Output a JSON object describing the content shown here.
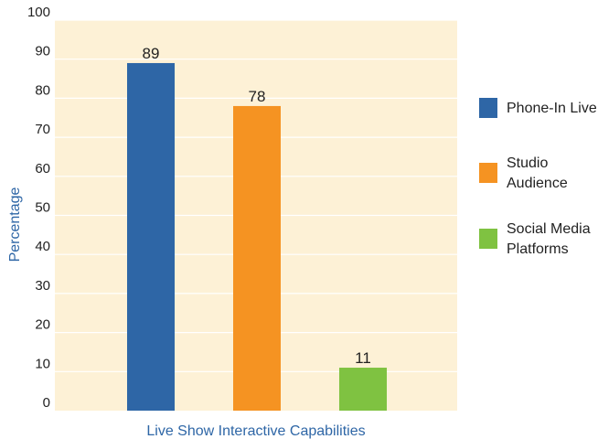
{
  "chart_data": {
    "type": "bar",
    "title": "",
    "xlabel": "Live Show Interactive Capabilities",
    "ylabel": "Percentage",
    "categories": [
      "Phone-In Live",
      "Studio Audience",
      "Social Media Platforms"
    ],
    "values": [
      89,
      78,
      11
    ],
    "data_labels": [
      "89",
      "78",
      "11"
    ],
    "ylim": [
      0,
      100
    ],
    "yticks": [
      "0",
      "10",
      "20",
      "30",
      "40",
      "50",
      "60",
      "70",
      "80",
      "90",
      "100"
    ],
    "grid": true,
    "legend_position": "right",
    "legend": [
      {
        "lines": [
          "Phone-In Live"
        ],
        "color": "#2e66a6"
      },
      {
        "lines": [
          "Studio",
          "Audience"
        ],
        "color": "#f59322"
      },
      {
        "lines": [
          "Social Media",
          "Platforms"
        ],
        "color": "#7fc241"
      }
    ],
    "colors": {
      "bars": [
        "#2e66a6",
        "#f59322",
        "#7fc241"
      ],
      "plot_background": "#fdf1d6",
      "gridline": "#ffffff",
      "axis_title": "#2e66a6"
    }
  }
}
